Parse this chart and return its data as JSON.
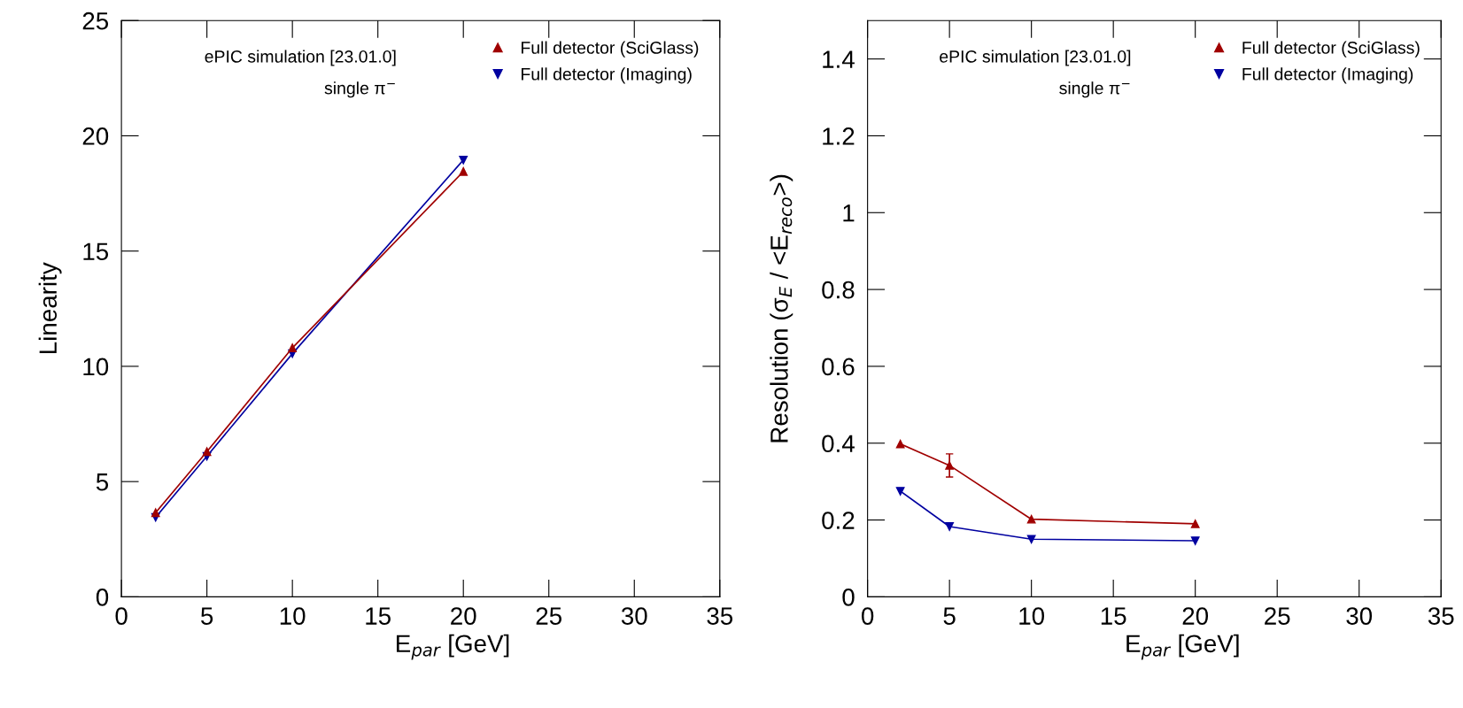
{
  "chart_data": [
    {
      "type": "line",
      "xlabel": "E$_{par}$ [GeV]",
      "ylabel": "Linearity",
      "xlim": [
        0,
        35
      ],
      "xticks": [
        0,
        5,
        10,
        15,
        20,
        25,
        30,
        35
      ],
      "ylim": [
        0,
        25
      ],
      "yticks": [
        0,
        5,
        10,
        15,
        20,
        25
      ],
      "x": [
        2,
        5,
        10,
        20
      ],
      "marker": "triangle",
      "legend": "top right",
      "grid": false,
      "annotations": [
        "ePIC simulation [23.01.0]",
        "single π$^{−}$"
      ],
      "series": [
        {
          "name": "Full detector (SciGlass)",
          "color": "#a00000",
          "values": [
            3.65,
            6.3,
            10.8,
            18.45
          ]
        },
        {
          "name": "Full detector (Imaging)",
          "color": "#0000a0",
          "values": [
            3.45,
            6.1,
            10.55,
            18.95
          ]
        }
      ]
    },
    {
      "type": "line",
      "xlabel": "E$_{par}$ [GeV]",
      "ylabel": "Resolution (σ$_{E}$ / <E$_{reco}$>)",
      "xlim": [
        0,
        35
      ],
      "xticks": [
        0,
        5,
        10,
        15,
        20,
        25,
        30,
        35
      ],
      "ylim": [
        0,
        1.5
      ],
      "yticks": [
        0,
        0.2,
        0.4,
        0.6,
        0.8,
        1,
        1.2,
        1.4
      ],
      "x": [
        2,
        5,
        10,
        20
      ],
      "marker": "triangle",
      "legend": "top right",
      "grid": false,
      "annotations": [
        "ePIC simulation [23.01.0]",
        "single π$^{−}$"
      ],
      "series": [
        {
          "name": "Full detector (SciGlass)",
          "color": "#a00000",
          "values": [
            0.398,
            0.342,
            0.202,
            0.19
          ],
          "errors": [
            null,
            0.03,
            null,
            null
          ]
        },
        {
          "name": "Full detector (Imaging)",
          "color": "#0000a0",
          "values": [
            0.275,
            0.183,
            0.15,
            0.146
          ]
        }
      ]
    }
  ]
}
